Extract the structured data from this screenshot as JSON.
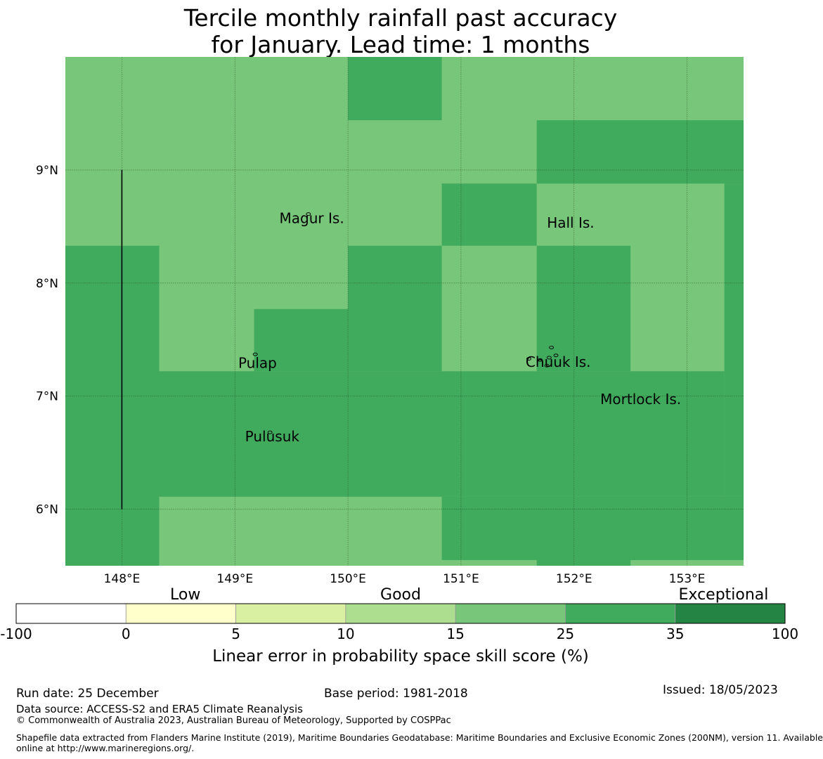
{
  "title": {
    "line1": "Tercile monthly rainfall past accuracy",
    "line2": "for January. Lead time: 1 months"
  },
  "map": {
    "lon_range": [
      147.5,
      153.5
    ],
    "lat_range": [
      5.5,
      10.0
    ],
    "lon_ticks": [
      {
        "value": 148,
        "label": "148°E"
      },
      {
        "value": 149,
        "label": "149°E"
      },
      {
        "value": 150,
        "label": "150°E"
      },
      {
        "value": 151,
        "label": "151°E"
      },
      {
        "value": 152,
        "label": "152°E"
      },
      {
        "value": 153,
        "label": "153°E"
      }
    ],
    "lat_ticks": [
      {
        "value": 9,
        "label": "9°N"
      },
      {
        "value": 8,
        "label": "8°N"
      },
      {
        "value": 7,
        "label": "7°N"
      },
      {
        "value": 6,
        "label": "6°N"
      }
    ],
    "background_category": "15-25",
    "cells": [
      {
        "lon": [
          150.0,
          150.83
        ],
        "lat": [
          9.44,
          10.0
        ],
        "category": "25-35"
      },
      {
        "lon": [
          151.67,
          153.5
        ],
        "lat": [
          8.88,
          9.44
        ],
        "category": "25-35"
      },
      {
        "lon": [
          150.83,
          151.67
        ],
        "lat": [
          8.33,
          8.88
        ],
        "category": "25-35"
      },
      {
        "lon": [
          153.33,
          153.5
        ],
        "lat": [
          6.11,
          8.88
        ],
        "category": "25-35"
      },
      {
        "lon": [
          147.5,
          148.33
        ],
        "lat": [
          5.5,
          8.33
        ],
        "category": "25-35"
      },
      {
        "lon": [
          150.0,
          150.83
        ],
        "lat": [
          7.22,
          8.33
        ],
        "category": "25-35"
      },
      {
        "lon": [
          151.67,
          152.5
        ],
        "lat": [
          7.22,
          8.33
        ],
        "category": "25-35"
      },
      {
        "lon": [
          149.17,
          150.0
        ],
        "lat": [
          7.22,
          7.77
        ],
        "category": "25-35"
      },
      {
        "lon": [
          148.33,
          153.33
        ],
        "lat": [
          6.11,
          7.22
        ],
        "category": "25-35"
      },
      {
        "lon": [
          150.83,
          153.5
        ],
        "lat": [
          5.55,
          6.11
        ],
        "category": "25-35"
      },
      {
        "lon": [
          151.67,
          152.5
        ],
        "lat": [
          5.5,
          5.55
        ],
        "category": "25-35"
      }
    ],
    "places": [
      {
        "name": "Magur Is.",
        "lon": 149.68,
        "lat": 8.53
      },
      {
        "name": "Hall Is.",
        "lon": 151.97,
        "lat": 8.49
      },
      {
        "name": "Pulap",
        "lon": 149.2,
        "lat": 7.25
      },
      {
        "name": "Chuuk Is.",
        "lon": 151.86,
        "lat": 7.26
      },
      {
        "name": "Mortlock Is.",
        "lon": 152.59,
        "lat": 6.93
      },
      {
        "name": "Pulusuk",
        "lon": 149.33,
        "lat": 6.6
      }
    ],
    "boundary_line": {
      "lon": 148.0,
      "lat": [
        6.0,
        9.0
      ]
    }
  },
  "legend": {
    "category_labels": [
      {
        "text": "Low",
        "position": 0.22
      },
      {
        "text": "Good",
        "position": 0.5
      },
      {
        "text": "Exceptional",
        "position": 0.92
      }
    ],
    "tick_labels": [
      "-100",
      "0",
      "5",
      "10",
      "15",
      "25",
      "35",
      "100"
    ],
    "bins": [
      {
        "range": "-100-0",
        "color": "#ffffff"
      },
      {
        "range": "0-5",
        "color": "#ffffcc"
      },
      {
        "range": "5-10",
        "color": "#d9f0a3"
      },
      {
        "range": "10-15",
        "color": "#addd8e"
      },
      {
        "range": "15-25",
        "color": "#78c679"
      },
      {
        "range": "25-35",
        "color": "#41ab5d"
      },
      {
        "range": "35-100",
        "color": "#238443"
      }
    ],
    "xlabel": "Linear error in probability space skill score (%)"
  },
  "footer": {
    "run_date": "Run date: 25 December",
    "base_period": "Base period: 1981-2018",
    "issued": "Issued: 18/05/2023",
    "data_source": "Data source: ACCESS-S2 and ERA5 Climate Reanalysis",
    "copyright": "© Commonwealth of Australia 2023, Australian Bureau of Meteorology, Supported by COSPPac",
    "shapefile_line1": "Shapefile data extracted from Flanders Marine Institute (2019), Maritime Boundaries Geodatabase: Maritime Boundaries and Exclusive Economic Zones (200NM), version 11. Available",
    "shapefile_line2": "online at http://www.marineregions.org/."
  }
}
